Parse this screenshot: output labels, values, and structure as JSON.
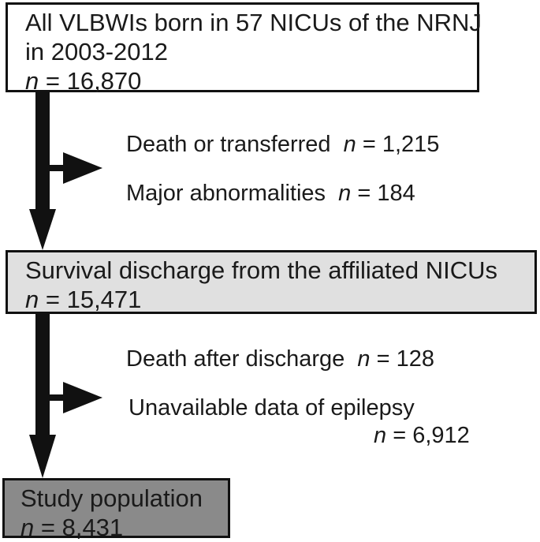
{
  "boxes": {
    "top": {
      "line1": "All VLBWIs born in 57 NICUs of the NRNJ",
      "line2": "in 2003-2012",
      "n_label": "n",
      "n_value": "= 16,870"
    },
    "middle": {
      "line1": "Survival discharge from the affiliated NICUs",
      "n_label": "n",
      "n_value": "= 15,471"
    },
    "bottom": {
      "line1": "Study population",
      "n_label": "n",
      "n_value": "= 8,431"
    }
  },
  "exclusions_1": [
    {
      "label": "Death or transferred",
      "n_label": "n",
      "n_value": "= 1,215"
    },
    {
      "label": "Major abnormalities",
      "n_label": "n",
      "n_value": "= 184"
    }
  ],
  "exclusions_2": [
    {
      "label": "Death after discharge",
      "n_label": "n",
      "n_value": "= 128"
    },
    {
      "label": "Unavailable data of epilepsy",
      "n_label": "n",
      "n_value": "= 6,912"
    }
  ],
  "colors": {
    "box_top": "#ffffff",
    "box_middle": "#e0e0e0",
    "box_bottom": "#8a8a8a",
    "arrow": "#111111"
  }
}
